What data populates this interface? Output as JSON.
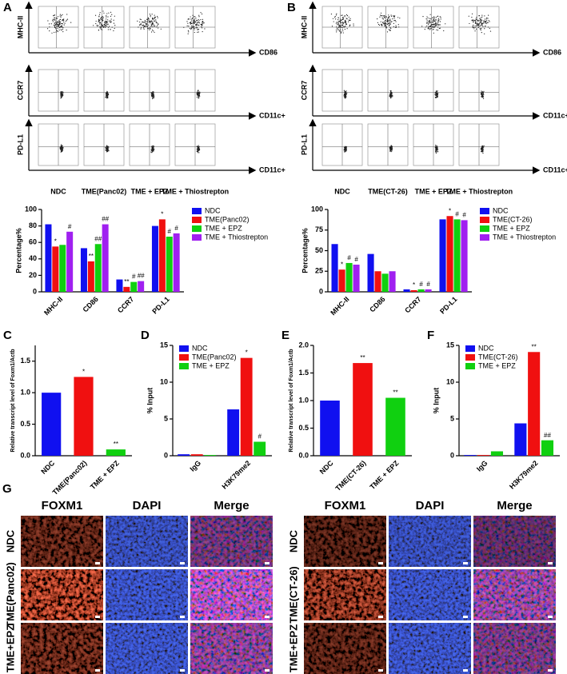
{
  "flow": [
    {
      "panel": "A",
      "y_labels": [
        "MHC-II",
        "CCR7",
        "PD-L1"
      ],
      "x_labels": [
        "CD86",
        "CD11c+",
        "CD11c+"
      ],
      "columns": [
        "NDC",
        "TME(Panc02)",
        "TME + EPZ",
        "TME + Thiostrepton"
      ]
    },
    {
      "panel": "B",
      "y_labels": [
        "MHC-II",
        "CCR7",
        "PD-L1"
      ],
      "x_labels": [
        "CD86",
        "CD11c+",
        "CD11c+"
      ],
      "columns": [
        "NDC",
        "TME(CT-26)",
        "TME + EPZ",
        "TME + Thiostrepton"
      ]
    }
  ],
  "chart_data": [
    {
      "type": "bar",
      "ylabel": "Percentage%",
      "categories": [
        "MHC-II",
        "CD86",
        "CCR7",
        "PD-L1"
      ],
      "series": [
        {
          "name": "NDC",
          "color": "#1010f0",
          "values": [
            82,
            53,
            15,
            80
          ],
          "significance": [
            null,
            null,
            null,
            null
          ]
        },
        {
          "name": "TME(Panc02)",
          "color": "#f01010",
          "values": [
            55,
            37,
            6,
            88
          ],
          "significance": [
            "*",
            "**",
            "**",
            "*"
          ]
        },
        {
          "name": "TME + EPZ",
          "color": "#10d010",
          "values": [
            57,
            58,
            12,
            67
          ],
          "significance": [
            null,
            "##",
            "#",
            "#"
          ]
        },
        {
          "name": "TME + Thiostrepton",
          "color": "#a020f0",
          "values": [
            73,
            82,
            13,
            71
          ],
          "significance": [
            "#",
            "##",
            "##",
            "#"
          ]
        }
      ],
      "ylim": [
        0,
        100
      ],
      "yticks": [
        0,
        20,
        40,
        60,
        80,
        100
      ],
      "legend": "outside right"
    },
    {
      "type": "bar",
      "ylabel": "Percentage%",
      "categories": [
        "MHC-II",
        "CD86",
        "CCR7",
        "PD-L1"
      ],
      "series": [
        {
          "name": "NDC",
          "color": "#1010f0",
          "values": [
            58,
            46,
            3,
            88
          ],
          "significance": [
            null,
            null,
            null,
            null
          ]
        },
        {
          "name": "TME(CT-26)",
          "color": "#f01010",
          "values": [
            27,
            25,
            2,
            92
          ],
          "significance": [
            "*",
            null,
            "*",
            "*"
          ]
        },
        {
          "name": "TME + EPZ",
          "color": "#10d010",
          "values": [
            35,
            22,
            3,
            88
          ],
          "significance": [
            "#",
            null,
            "#",
            "#"
          ]
        },
        {
          "name": "TME + Thiostrepton",
          "color": "#a020f0",
          "values": [
            33,
            25,
            3,
            87
          ],
          "significance": [
            "#",
            null,
            "#",
            "#"
          ]
        }
      ],
      "ylim": [
        0,
        100
      ],
      "yticks": [
        0,
        25,
        50,
        75,
        100
      ],
      "legend": "outside right"
    },
    {
      "type": "bar",
      "panel": "C",
      "ylabel": "Relative transcript level of Foxm1/Actb",
      "categories": [
        "NDC",
        "TME(Panc02)",
        "TME + EPZ"
      ],
      "values": [
        1,
        1.25,
        0.1
      ],
      "colors": [
        "#1010f0",
        "#f01010",
        "#10d010"
      ],
      "significance": [
        null,
        "*",
        "**"
      ],
      "ylim": [
        0,
        1.75
      ],
      "yticks": [
        {
          "value": 0,
          "label": "0.0"
        },
        {
          "value": 0.5,
          "label": "0.5"
        },
        {
          "value": 1,
          "label": "1.0"
        },
        {
          "value": 1.5,
          "label": "1.5"
        }
      ]
    },
    {
      "type": "bar",
      "panel": "D",
      "ylabel": "% Input",
      "categories": [
        "IgG",
        "H3K79me2"
      ],
      "series": [
        {
          "name": "NDC",
          "color": "#1010f0",
          "values": [
            0.2,
            6.3
          ],
          "significance": [
            null,
            null
          ]
        },
        {
          "name": "TME(Panc02)",
          "color": "#f01010",
          "values": [
            0.2,
            13.3
          ],
          "significance": [
            null,
            "*"
          ]
        },
        {
          "name": "TME + EPZ",
          "color": "#10d010",
          "values": [
            0.1,
            1.9
          ],
          "significance": [
            null,
            "#"
          ]
        }
      ],
      "ylim": [
        0,
        15
      ],
      "yticks": [
        0,
        5,
        10,
        15
      ],
      "legend": "upper left"
    },
    {
      "type": "bar",
      "panel": "E",
      "ylabel": "Relative transcript level of Foxm1/Actb",
      "categories": [
        "NDC",
        "TME(CT-26)",
        "TME + EPZ"
      ],
      "values": [
        1,
        1.68,
        1.05
      ],
      "colors": [
        "#1010f0",
        "#f01010",
        "#10d010"
      ],
      "significance": [
        null,
        "**",
        "**"
      ],
      "ylim": [
        0,
        2
      ],
      "yticks": [
        {
          "value": 0,
          "label": "0.0"
        },
        {
          "value": 0.5,
          "label": "0.5"
        },
        {
          "value": 1,
          "label": "1.0"
        },
        {
          "value": 1.5,
          "label": "1.5"
        },
        {
          "value": 2,
          "label": "2.0"
        }
      ]
    },
    {
      "type": "bar",
      "panel": "F",
      "ylabel": "% Input",
      "categories": [
        "IgG",
        "H3K79me2"
      ],
      "series": [
        {
          "name": "NDC",
          "color": "#1010f0",
          "values": [
            0.1,
            4.4
          ],
          "significance": [
            null,
            null
          ]
        },
        {
          "name": "TME(CT-26)",
          "color": "#f01010",
          "values": [
            0.1,
            14.1
          ],
          "significance": [
            null,
            "**"
          ]
        },
        {
          "name": "TME + EPZ",
          "color": "#10d010",
          "values": [
            0.6,
            2.1
          ],
          "significance": [
            null,
            "##"
          ]
        }
      ],
      "ylim": [
        0,
        15
      ],
      "yticks": [
        0,
        5,
        10,
        15
      ],
      "legend": "upper left"
    }
  ],
  "images": {
    "panel": "G",
    "groups": [
      {
        "columns": [
          "FOXM1",
          "DAPI",
          "Merge"
        ],
        "rows": [
          "NDC",
          "TME(Panc02)",
          "TME+EPZ"
        ]
      },
      {
        "columns": [
          "FOXM1",
          "DAPI",
          "Merge"
        ],
        "rows": [
          "NDC",
          "TME(CT-26)",
          "TME+EPZ"
        ]
      }
    ]
  }
}
